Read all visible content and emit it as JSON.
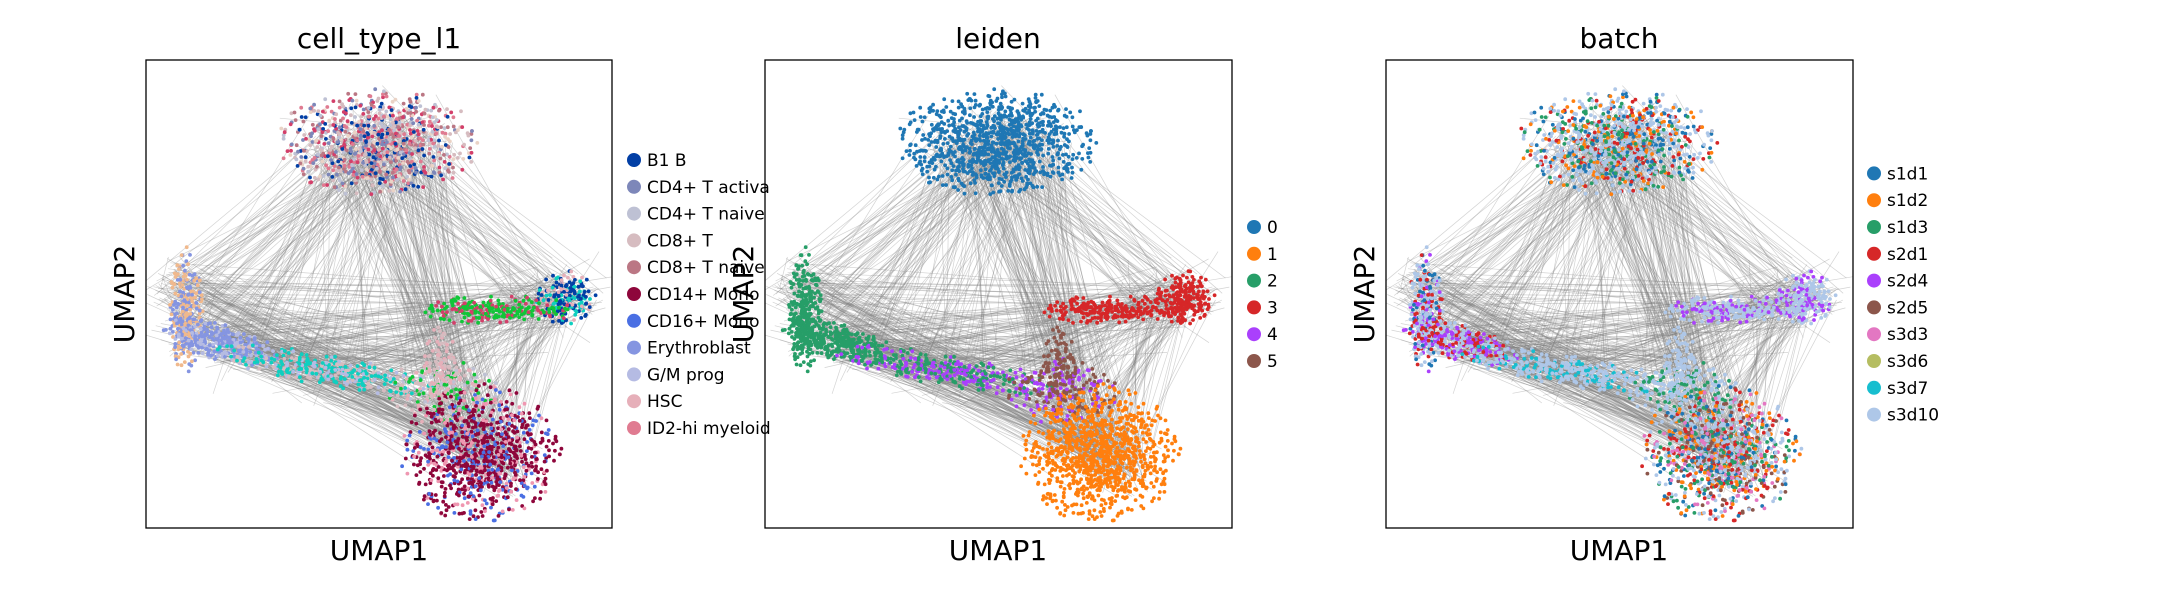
{
  "chart_data": [
    {
      "type": "scatter",
      "title": "cell_type_l1",
      "xlabel": "UMAP1",
      "ylabel": "UMAP2",
      "legend_position": "right",
      "grid": false,
      "edges": true,
      "categories": [
        {
          "name": "B1 B",
          "color": "#023fa5"
        },
        {
          "name": "CD4+ T activa",
          "color": "#7d87b9"
        },
        {
          "name": "CD4+ T naive",
          "color": "#bec1d4"
        },
        {
          "name": "CD8+ T",
          "color": "#d6bcc0"
        },
        {
          "name": "CD8+ T naive",
          "color": "#bb7784"
        },
        {
          "name": "CD14+ Mono",
          "color": "#8e063b"
        },
        {
          "name": "CD16+ Mono",
          "color": "#4a6fe3"
        },
        {
          "name": "Erythroblast",
          "color": "#8595e1"
        },
        {
          "name": "G/M prog",
          "color": "#b5bbe3"
        },
        {
          "name": "HSC",
          "color": "#e6afb9"
        },
        {
          "name": "ID2-hi myeloid",
          "color": "#e07b91"
        }
      ],
      "extra_colors": [
        "#11c638",
        "#0fcfc0",
        "#f0b98d",
        "#ef97b1",
        "#d33f6a",
        "#f79cd4",
        "#ead3c6",
        "#c6dec7"
      ]
    },
    {
      "type": "scatter",
      "title": "leiden",
      "xlabel": "UMAP1",
      "ylabel": "UMAP2",
      "legend_position": "right",
      "grid": false,
      "edges": true,
      "categories": [
        {
          "name": "0",
          "color": "#1f77b4"
        },
        {
          "name": "1",
          "color": "#ff7f0e"
        },
        {
          "name": "2",
          "color": "#279e68"
        },
        {
          "name": "3",
          "color": "#d62728"
        },
        {
          "name": "4",
          "color": "#aa40fc"
        },
        {
          "name": "5",
          "color": "#8c564b"
        }
      ]
    },
    {
      "type": "scatter",
      "title": "batch",
      "xlabel": "UMAP1",
      "ylabel": "UMAP2",
      "legend_position": "right",
      "grid": false,
      "edges": true,
      "categories": [
        {
          "name": "s1d1",
          "color": "#1f77b4"
        },
        {
          "name": "s1d2",
          "color": "#ff7f0e"
        },
        {
          "name": "s1d3",
          "color": "#279e68"
        },
        {
          "name": "s2d1",
          "color": "#d62728"
        },
        {
          "name": "s2d4",
          "color": "#aa40fc"
        },
        {
          "name": "s2d5",
          "color": "#8c564b"
        },
        {
          "name": "s3d3",
          "color": "#e377c2"
        },
        {
          "name": "s3d6",
          "color": "#b5bd61"
        },
        {
          "name": "s3d7",
          "color": "#17becf"
        },
        {
          "name": "s3d10",
          "color": "#aec7e8"
        }
      ]
    }
  ]
}
